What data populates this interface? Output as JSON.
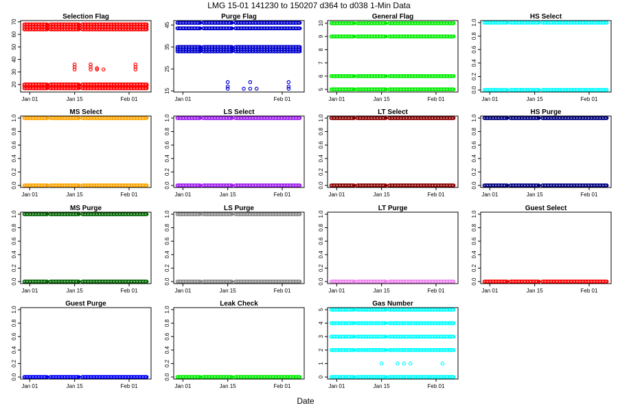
{
  "figure": {
    "title": "LMG  15-01    141230 to 150207    d364 to d038   1-Min Data",
    "xlabel": "Date"
  },
  "chart_data": [
    {
      "type": "scatter",
      "title": "Selection Flag",
      "color": "#ff0000",
      "ylim": [
        14,
        71
      ],
      "yticks": [
        "20",
        "30",
        "40",
        "50",
        "60",
        "70"
      ],
      "ytick_values": [
        20,
        30,
        40,
        50,
        60,
        70
      ],
      "xticks": [
        "Jan 01",
        "Jan 15",
        "Feb 01"
      ],
      "levels": [
        17,
        19,
        20,
        64,
        66,
        68
      ],
      "sparse": [
        {
          "x": "Jan 15",
          "y": [
            32,
            34,
            36
          ]
        },
        {
          "x": "Jan 20",
          "y": [
            32,
            34,
            36
          ]
        },
        {
          "x": "Jan 22",
          "y": [
            32,
            33
          ]
        },
        {
          "x": "Jan 24",
          "y": [
            32
          ]
        },
        {
          "x": "Feb 03",
          "y": [
            32,
            34,
            36
          ]
        }
      ]
    },
    {
      "type": "scatter",
      "title": "Purge Flag",
      "color": "#0000cc",
      "ylim": [
        14.5,
        47
      ],
      "yticks": [
        "15",
        "25",
        "35",
        "45"
      ],
      "ytick_values": [
        15,
        25,
        35,
        45
      ],
      "xticks": [
        "Jan 01",
        "Feb 01"
      ],
      "levels": [
        33,
        34,
        35,
        43.5,
        46
      ],
      "sparse": [
        {
          "x": "Jan 15",
          "y": [
            16,
            17,
            19
          ]
        },
        {
          "x": "Jan 20",
          "y": [
            16
          ]
        },
        {
          "x": "Jan 22",
          "y": [
            16,
            19
          ]
        },
        {
          "x": "Jan 24",
          "y": [
            16
          ]
        },
        {
          "x": "Feb 03",
          "y": [
            16,
            17,
            19
          ]
        }
      ]
    },
    {
      "type": "scatter",
      "title": "General Flag",
      "color": "#00ee00",
      "ylim": [
        4.8,
        10.2
      ],
      "yticks": [
        "5",
        "6",
        "7",
        "8",
        "9",
        "10"
      ],
      "ytick_values": [
        5,
        6,
        7,
        8,
        9,
        10
      ],
      "xticks": [
        "Jan 01",
        "Jan 15",
        "Feb 01"
      ],
      "levels": [
        5,
        6,
        9,
        10
      ],
      "sparse": []
    },
    {
      "type": "scatter",
      "title": "HS Select",
      "color": "#00ffff",
      "ylim": [
        -0.03,
        1.03
      ],
      "yticks": [
        "0.0",
        "0.2",
        "0.4",
        "0.6",
        "0.8",
        "1.0"
      ],
      "ytick_values": [
        0,
        0.2,
        0.4,
        0.6,
        0.8,
        1
      ],
      "xticks": [
        "Jan 01",
        "Jan 15",
        "Feb 01"
      ],
      "levels": [
        0,
        1
      ],
      "sparse": []
    },
    {
      "type": "scatter",
      "title": "MS Select",
      "color": "#ffa500",
      "ylim": [
        -0.03,
        1.03
      ],
      "yticks": [
        "0.0",
        "0.2",
        "0.4",
        "0.6",
        "0.8",
        "1.0"
      ],
      "ytick_values": [
        0,
        0.2,
        0.4,
        0.6,
        0.8,
        1
      ],
      "xticks": [
        "Jan 01",
        "Jan 15",
        "Feb 01"
      ],
      "levels": [
        0,
        1
      ],
      "sparse": []
    },
    {
      "type": "scatter",
      "title": "LS Select",
      "color": "#a020f0",
      "ylim": [
        -0.03,
        1.03
      ],
      "yticks": [
        "0.0",
        "0.2",
        "0.4",
        "0.6",
        "0.8",
        "1.0"
      ],
      "ytick_values": [
        0,
        0.2,
        0.4,
        0.6,
        0.8,
        1
      ],
      "xticks": [
        "Jan 01",
        "Jan 15",
        "Feb 01"
      ],
      "levels": [
        0,
        1
      ],
      "sparse": []
    },
    {
      "type": "scatter",
      "title": "LT Select",
      "color": "#8b0000",
      "ylim": [
        -0.03,
        1.03
      ],
      "yticks": [
        "0.0",
        "0.2",
        "0.4",
        "0.6",
        "0.8",
        "1.0"
      ],
      "ytick_values": [
        0,
        0.2,
        0.4,
        0.6,
        0.8,
        1
      ],
      "xticks": [
        "Jan 01",
        "Jan 15",
        "Feb 01"
      ],
      "levels": [
        0,
        1
      ],
      "sparse": []
    },
    {
      "type": "scatter",
      "title": "HS Purge",
      "color": "#000080",
      "ylim": [
        -0.03,
        1.03
      ],
      "yticks": [
        "0.0",
        "0.2",
        "0.4",
        "0.6",
        "0.8",
        "1.0"
      ],
      "ytick_values": [
        0,
        0.2,
        0.4,
        0.6,
        0.8,
        1
      ],
      "xticks": [
        "Jan 01",
        "Jan 15",
        "Feb 01"
      ],
      "levels": [
        0,
        1
      ],
      "sparse": []
    },
    {
      "type": "scatter",
      "title": "MS Purge",
      "color": "#006400",
      "ylim": [
        -0.03,
        1.03
      ],
      "yticks": [
        "0.0",
        "0.2",
        "0.4",
        "0.6",
        "0.8",
        "1.0"
      ],
      "ytick_values": [
        0,
        0.2,
        0.4,
        0.6,
        0.8,
        1
      ],
      "xticks": [
        "Jan 01",
        "Jan 15",
        "Feb 01"
      ],
      "levels": [
        0,
        1
      ],
      "sparse": []
    },
    {
      "type": "scatter",
      "title": "LS Purge",
      "color": "#888888",
      "ylim": [
        -0.03,
        1.03
      ],
      "yticks": [
        "0.0",
        "0.2",
        "0.4",
        "0.6",
        "0.8",
        "1.0"
      ],
      "ytick_values": [
        0,
        0.2,
        0.4,
        0.6,
        0.8,
        1
      ],
      "xticks": [
        "Jan 01",
        "Jan 15",
        "Feb 01"
      ],
      "levels": [
        0,
        1
      ],
      "sparse": []
    },
    {
      "type": "scatter",
      "title": "LT Purge",
      "color": "#ee82ee",
      "ylim": [
        -0.03,
        1.03
      ],
      "yticks": [
        "0.0",
        "0.2",
        "0.4",
        "0.6",
        "0.8",
        "1.0"
      ],
      "ytick_values": [
        0,
        0.2,
        0.4,
        0.6,
        0.8,
        1
      ],
      "xticks": [
        "Jan 01",
        "Jan 15",
        "Feb 01"
      ],
      "levels": [
        0
      ],
      "sparse": []
    },
    {
      "type": "scatter",
      "title": "Guest Select",
      "color": "#ff0000",
      "ylim": [
        -0.03,
        1.03
      ],
      "yticks": [
        "0.0",
        "0.2",
        "0.4",
        "0.6",
        "0.8",
        "1.0"
      ],
      "ytick_values": [
        0,
        0.2,
        0.4,
        0.6,
        0.8,
        1
      ],
      "xticks": [
        "Jan 01",
        "Jan 15",
        "Feb 01"
      ],
      "levels": [
        0
      ],
      "sparse": []
    },
    {
      "type": "scatter",
      "title": "Guest Purge",
      "color": "#0000ff",
      "ylim": [
        -0.03,
        1.03
      ],
      "yticks": [
        "0.0",
        "0.2",
        "0.4",
        "0.6",
        "0.8",
        "1.0"
      ],
      "ytick_values": [
        0,
        0.2,
        0.4,
        0.6,
        0.8,
        1
      ],
      "xticks": [
        "Jan 01",
        "Jan 15",
        "Feb 01"
      ],
      "levels": [
        0
      ],
      "sparse": []
    },
    {
      "type": "scatter",
      "title": "Leak Check",
      "color": "#00ee00",
      "ylim": [
        -0.03,
        1.03
      ],
      "yticks": [
        "0.0",
        "0.2",
        "0.4",
        "0.6",
        "0.8",
        "1.0"
      ],
      "ytick_values": [
        0,
        0.2,
        0.4,
        0.6,
        0.8,
        1
      ],
      "xticks": [
        "Jan 01",
        "Jan 15",
        "Feb 01"
      ],
      "levels": [
        0
      ],
      "sparse": []
    },
    {
      "type": "scatter",
      "title": "Gas Number",
      "color": "#00ffff",
      "ylim": [
        -0.15,
        5.15
      ],
      "yticks": [
        "0",
        "1",
        "2",
        "3",
        "4",
        "5"
      ],
      "ytick_values": [
        0,
        1,
        2,
        3,
        4,
        5
      ],
      "xticks": [
        "Jan 01",
        "Jan 15",
        "Feb 01"
      ],
      "levels": [
        0,
        2,
        3,
        4,
        5
      ],
      "sparse": [
        {
          "x": "Jan 15",
          "y": [
            1
          ]
        },
        {
          "x": "Jan 20",
          "y": [
            1
          ]
        },
        {
          "x": "Jan 22",
          "y": [
            1
          ]
        },
        {
          "x": "Jan 24",
          "y": [
            1
          ]
        },
        {
          "x": "Feb 03",
          "y": [
            1
          ]
        }
      ]
    }
  ]
}
